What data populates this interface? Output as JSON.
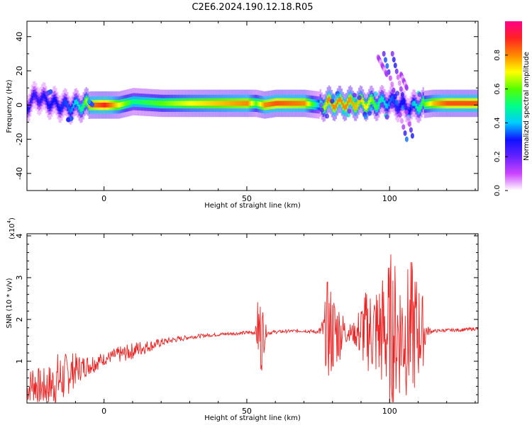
{
  "title": "C2E6.2024.190.12.18.R05",
  "colors": {
    "line": "#ee2222",
    "frame": "#000000"
  },
  "chart_data": [
    {
      "type": "heatmap",
      "xlabel": "Height of straight line (km)",
      "ylabel": "Frequency (Hz)",
      "xlim": [
        -27,
        131
      ],
      "ylim": [
        -50,
        49
      ],
      "xticks": [
        0,
        50,
        100
      ],
      "yticks": [
        -40,
        -20,
        0,
        20,
        40
      ],
      "colorbar": {
        "label": "Normalized spectral amplitude",
        "ticks": [
          0.0,
          0.2,
          0.4,
          0.6,
          0.8
        ],
        "range": [
          0,
          1
        ],
        "colormap": [
          "#ffffff",
          "#cc44ff",
          "#6622ff",
          "#1111ff",
          "#00ccff",
          "#00ff88",
          "#55ff00",
          "#ffff00",
          "#ff8800",
          "#ff2222",
          "#ff0088"
        ]
      },
      "ridge": {
        "x": [
          -27,
          -24,
          -20,
          -16,
          -12,
          -8,
          -5,
          0,
          5,
          10,
          20,
          30,
          40,
          50,
          53,
          56,
          60,
          70,
          75,
          78,
          85,
          92,
          96,
          100,
          103,
          107,
          110,
          115,
          120,
          131
        ],
        "freq": [
          0,
          5,
          2,
          0,
          -1,
          0,
          0,
          0,
          0,
          2,
          1,
          1,
          1,
          1,
          1,
          0,
          1,
          1,
          0,
          1,
          1,
          1,
          1,
          2,
          0,
          -2,
          0,
          1,
          1,
          1
        ],
        "amplitude": [
          0.3,
          0.25,
          0.3,
          0.3,
          0.35,
          0.5,
          0.8,
          0.9,
          0.7,
          0.5,
          0.6,
          0.7,
          0.75,
          0.8,
          0.6,
          0.8,
          0.85,
          0.8,
          0.4,
          0.8,
          0.8,
          0.7,
          0.5,
          0.35,
          0.3,
          0.3,
          0.5,
          0.75,
          0.85,
          0.85
        ]
      },
      "streaks": [
        {
          "x0": 98,
          "f0": 30,
          "x1": 106,
          "f1": -20,
          "amplitude": 0.35
        },
        {
          "x0": 101,
          "f0": 30,
          "x1": 108,
          "f1": -18,
          "amplitude": 0.3
        },
        {
          "x0": 96,
          "f0": 28,
          "x1": 99,
          "f1": 18,
          "amplitude": 0.15
        },
        {
          "x0": 104,
          "f0": 18,
          "x1": 106,
          "f1": 10,
          "amplitude": 0.15
        }
      ]
    },
    {
      "type": "line",
      "xlabel": "Height of straight line (km)",
      "ylabel": "SNR (10 * v/v)",
      "scale_label": "(x10",
      "scale_exp": "4",
      "xlim": [
        -27,
        131
      ],
      "ylim": [
        0,
        4.05
      ],
      "xticks": [
        0,
        50,
        100
      ],
      "yticks": [
        1,
        2,
        3,
        4
      ],
      "series": [
        {
          "x": [
            -27,
            -25,
            -22,
            -20,
            -18,
            -16,
            -14,
            -12,
            -10,
            -8,
            -6,
            -4,
            -2,
            0,
            2,
            5,
            8,
            10,
            12,
            15,
            18,
            20,
            22,
            25,
            28,
            30,
            33,
            36,
            40,
            44,
            48,
            50,
            53,
            54,
            55,
            56,
            57,
            60,
            65,
            70,
            75,
            77,
            78,
            79,
            80,
            82,
            84,
            86,
            88,
            90,
            92,
            94,
            96,
            98,
            100,
            101,
            102,
            104,
            106,
            108,
            110,
            112,
            113,
            115,
            120,
            125,
            131
          ],
          "y": [
            0.3,
            0.5,
            0.35,
            0.4,
            0.45,
            0.55,
            0.6,
            0.75,
            0.8,
            0.85,
            0.9,
            0.95,
            1.0,
            1.05,
            1.1,
            1.15,
            1.2,
            1.25,
            1.3,
            1.35,
            1.4,
            1.45,
            1.48,
            1.52,
            1.55,
            1.58,
            1.6,
            1.62,
            1.64,
            1.66,
            1.67,
            1.68,
            1.7,
            1.75,
            1.6,
            1.7,
            1.68,
            1.7,
            1.72,
            1.73,
            1.7,
            1.72,
            1.75,
            1.7,
            1.68,
            1.7,
            1.72,
            1.7,
            1.65,
            1.7,
            1.75,
            1.72,
            1.7,
            1.7,
            1.7,
            1.75,
            1.7,
            1.72,
            1.7,
            1.75,
            1.72,
            1.73,
            1.72,
            1.72,
            1.74,
            1.75,
            1.78
          ],
          "jitter": [
            0.3,
            0.5,
            0.45,
            0.5,
            0.55,
            0.7,
            0.6,
            0.5,
            0.4,
            0.3,
            0.25,
            0.25,
            0.2,
            0.15,
            0.15,
            0.2,
            0.2,
            0.2,
            0.2,
            0.15,
            0.12,
            0.1,
            0.08,
            0.07,
            0.06,
            0.05,
            0.05,
            0.04,
            0.04,
            0.04,
            0.04,
            0.05,
            0.06,
            0.9,
            1.0,
            0.5,
            0.06,
            0.04,
            0.04,
            0.04,
            0.05,
            0.4,
            1.2,
            1.2,
            1.1,
            0.8,
            0.4,
            0.2,
            0.3,
            0.8,
            1.0,
            1.1,
            1.3,
            1.5,
            1.8,
            2.1,
            1.7,
            1.6,
            1.6,
            1.7,
            1.3,
            0.8,
            0.15,
            0.04,
            0.04,
            0.04,
            0.04
          ]
        }
      ]
    }
  ]
}
